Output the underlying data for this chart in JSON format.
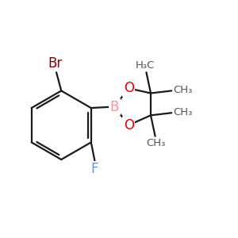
{
  "background_color": "#ffffff",
  "bond_color": "#1a1a1a",
  "bond_width": 1.6,
  "atom_colors": {
    "Br": "#8B0000",
    "B": "#ff9090",
    "O": "#ee0000",
    "F": "#5599ff",
    "C": "#555555"
  },
  "font_size_large": 12,
  "font_size_small": 9.5,
  "figsize": [
    3.0,
    3.0
  ],
  "dpi": 100,
  "xlim": [
    0.02,
    0.98
  ],
  "ylim": [
    0.1,
    0.92
  ]
}
